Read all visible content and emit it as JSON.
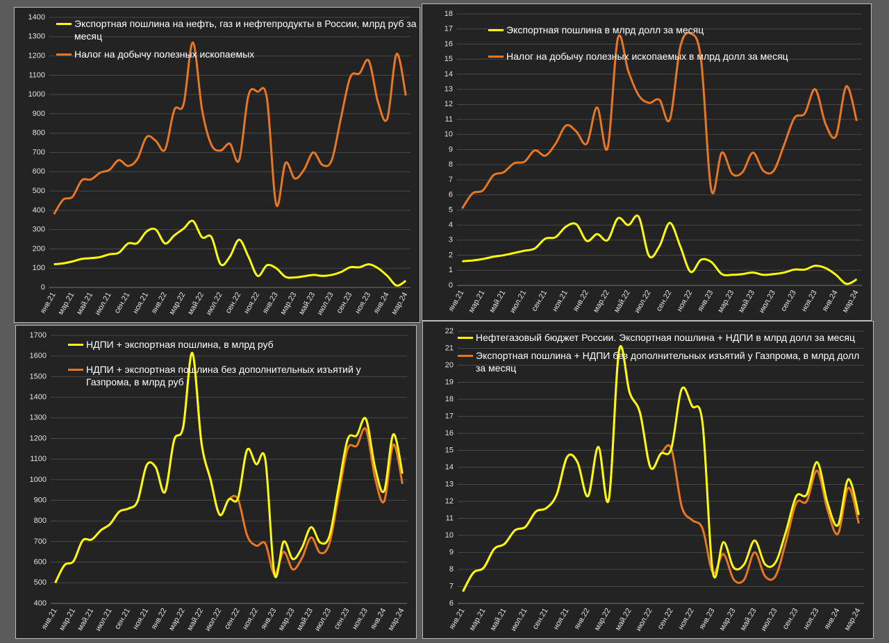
{
  "chart_data": [
    {
      "type": "line",
      "categories": [
        "янв.21",
        null,
        "мар.21",
        null,
        "май.21",
        null,
        "июл.21",
        null,
        "сен.21",
        null,
        "ноя.21",
        null,
        "янв.22",
        null,
        "мар.22",
        null,
        "май.22",
        null,
        "июл.22",
        null,
        "сен.22",
        null,
        "ноя.22",
        null,
        "янв.23",
        null,
        "мар.23",
        null,
        "май.23",
        null,
        "июл.23",
        null,
        "сен.23",
        null,
        "ноя.23",
        null,
        "янв.24",
        null,
        "мар.24"
      ],
      "ylim": [
        0,
        1400
      ],
      "yticks": [
        0,
        100,
        200,
        300,
        400,
        500,
        600,
        700,
        800,
        900,
        1000,
        1100,
        1200,
        1300,
        1400
      ],
      "grid": true,
      "series": [
        {
          "name": "Экспортная пошлина на нефть, газ и нефтепродукты в России, млрд руб за месяц",
          "color": "#ffff00",
          "values": [
            120,
            125,
            135,
            148,
            152,
            158,
            172,
            180,
            228,
            230,
            290,
            300,
            228,
            270,
            305,
            345,
            260,
            262,
            120,
            160,
            248,
            160,
            60,
            115,
            100,
            55,
            52,
            58,
            65,
            60,
            65,
            80,
            105,
            105,
            120,
            100,
            60,
            10,
            35
          ]
        },
        {
          "name": "Налог на добычу полезных ископаемых",
          "color": "#e87722",
          "values": [
            380,
            455,
            470,
            555,
            560,
            595,
            610,
            660,
            630,
            665,
            780,
            760,
            715,
            920,
            950,
            1270,
            920,
            740,
            710,
            745,
            660,
            995,
            1015,
            980,
            430,
            645,
            565,
            610,
            700,
            635,
            660,
            880,
            1090,
            1110,
            1175,
            960,
            875,
            1210,
            995
          ]
        }
      ]
    },
    {
      "type": "line",
      "categories": [
        "янв.21",
        null,
        "мар.21",
        null,
        "май.21",
        null,
        "июл.21",
        null,
        "сен.21",
        null,
        "ноя.21",
        null,
        "янв.22",
        null,
        "мар.22",
        null,
        "май.22",
        null,
        "июл.22",
        null,
        "сен.22",
        null,
        "ноя.22",
        null,
        "янв.23",
        null,
        "мар.23",
        null,
        "май.23",
        null,
        "июл.23",
        null,
        "сен.23",
        null,
        "ноя.23",
        null,
        "янв.24",
        null,
        "мар.24"
      ],
      "ylim": [
        0,
        18
      ],
      "yticks": [
        0,
        1,
        2,
        3,
        4,
        5,
        6,
        7,
        8,
        9,
        10,
        11,
        12,
        13,
        14,
        15,
        16,
        17,
        18
      ],
      "grid": true,
      "series": [
        {
          "name": "Экспортная пошлина в млрд долл за месяц",
          "color": "#ffff00",
          "values": [
            1.6,
            1.65,
            1.75,
            1.9,
            2.0,
            2.15,
            2.3,
            2.45,
            3.1,
            3.2,
            3.9,
            4.05,
            2.95,
            3.4,
            3.0,
            4.45,
            4.0,
            4.55,
            1.95,
            2.6,
            4.15,
            2.6,
            0.9,
            1.7,
            1.55,
            0.75,
            0.7,
            0.75,
            0.85,
            0.7,
            0.75,
            0.85,
            1.05,
            1.05,
            1.3,
            1.15,
            0.7,
            0.1,
            0.4
          ]
        },
        {
          "name": "Налог на добычу полезных ископаемых в млрд долл за месяц",
          "color": "#e87722",
          "values": [
            5.1,
            6.1,
            6.3,
            7.3,
            7.5,
            8.1,
            8.2,
            8.95,
            8.6,
            9.4,
            10.6,
            10.2,
            9.4,
            11.8,
            9.1,
            16.4,
            14.2,
            12.6,
            12.1,
            12.3,
            11.0,
            15.8,
            16.7,
            15.0,
            6.3,
            8.8,
            7.4,
            7.5,
            8.8,
            7.6,
            7.6,
            9.3,
            11.1,
            11.4,
            13.0,
            10.7,
            9.9,
            13.2,
            10.9
          ]
        }
      ]
    },
    {
      "type": "line",
      "categories": [
        "янв.21",
        null,
        "мар.21",
        null,
        "май.21",
        null,
        "июл.21",
        null,
        "сен.21",
        null,
        "ноя.21",
        null,
        "янв.22",
        null,
        "мар.22",
        null,
        "май.22",
        null,
        "июл.22",
        null,
        "сен.22",
        null,
        "ноя.22",
        null,
        "янв.23",
        null,
        "мар.23",
        null,
        "май.23",
        null,
        "июл.23",
        null,
        "сен.23",
        null,
        "ноя.23",
        null,
        "янв.24",
        null,
        "мар.24"
      ],
      "ylim": [
        400,
        1700
      ],
      "yticks": [
        400,
        500,
        600,
        700,
        800,
        900,
        1000,
        1100,
        1200,
        1300,
        1400,
        1500,
        1600,
        1700
      ],
      "grid": true,
      "series": [
        {
          "name": "НДПИ + экспортная пошлина, в млрд руб",
          "color": "#ffff00",
          "values": [
            500,
            585,
            605,
            705,
            710,
            755,
            785,
            845,
            860,
            895,
            1070,
            1060,
            940,
            1190,
            1255,
            1615,
            1180,
            1000,
            830,
            905,
            910,
            1145,
            1075,
            1095,
            540,
            700,
            615,
            670,
            770,
            695,
            725,
            960,
            1195,
            1215,
            1295,
            1060,
            945,
            1220,
            1030
          ]
        },
        {
          "name": "НДПИ + экспортная пошлина без дополнительных изъятий у Газпрома, в млрд руб",
          "color": "#e87722",
          "values": [
            500,
            585,
            605,
            705,
            710,
            755,
            785,
            845,
            860,
            895,
            1070,
            1060,
            940,
            1190,
            1255,
            1615,
            1180,
            1000,
            830,
            905,
            905,
            730,
            680,
            690,
            540,
            650,
            565,
            620,
            720,
            645,
            690,
            920,
            1150,
            1165,
            1245,
            1010,
            895,
            1170,
            980
          ]
        }
      ]
    },
    {
      "type": "line",
      "categories": [
        "янв.21",
        null,
        "мар.21",
        null,
        "май.21",
        null,
        "июл.21",
        null,
        "сен.21",
        null,
        "ноя.21",
        null,
        "янв.22",
        null,
        "мар.22",
        null,
        "май.22",
        null,
        "июл.22",
        null,
        "сен.22",
        null,
        "ноя.22",
        null,
        "янв.23",
        null,
        "мар.23",
        null,
        "май.23",
        null,
        "июл.23",
        null,
        "сен.23",
        null,
        "ноя.23",
        null,
        "янв.24",
        null,
        "мар.24"
      ],
      "ylim": [
        6,
        22
      ],
      "yticks": [
        6,
        7,
        8,
        9,
        10,
        11,
        12,
        13,
        14,
        15,
        16,
        17,
        18,
        19,
        20,
        21,
        22
      ],
      "grid": true,
      "series": [
        {
          "name": "Нефтегазовый бюджет России. Экспортная пошлина + НДПИ в млрд долл за месяц",
          "color": "#ffff00",
          "values": [
            6.7,
            7.8,
            8.1,
            9.2,
            9.5,
            10.3,
            10.5,
            11.4,
            11.6,
            12.4,
            14.6,
            14.3,
            12.3,
            15.2,
            12.1,
            20.9,
            18.4,
            17.2,
            14.0,
            14.8,
            15.1,
            18.6,
            17.6,
            16.6,
            7.8,
            9.6,
            8.1,
            8.3,
            9.7,
            8.3,
            8.4,
            10.2,
            12.3,
            12.4,
            14.3,
            11.9,
            10.6,
            13.3,
            11.2
          ]
        },
        {
          "name": "Экспортная пошлина + НДПИ без дополнительных изъятий у Газпрома, в млрд долл за месяц",
          "color": "#e87722",
          "values": [
            6.7,
            7.8,
            8.1,
            9.2,
            9.5,
            10.3,
            10.5,
            11.4,
            11.6,
            12.4,
            14.6,
            14.3,
            12.3,
            15.2,
            12.1,
            20.9,
            18.4,
            17.2,
            14.0,
            14.8,
            15.1,
            11.7,
            10.9,
            10.4,
            7.8,
            8.9,
            7.4,
            7.4,
            9.0,
            7.6,
            7.6,
            9.6,
            11.9,
            12.0,
            13.8,
            11.5,
            10.1,
            12.8,
            10.7
          ]
        }
      ]
    }
  ]
}
